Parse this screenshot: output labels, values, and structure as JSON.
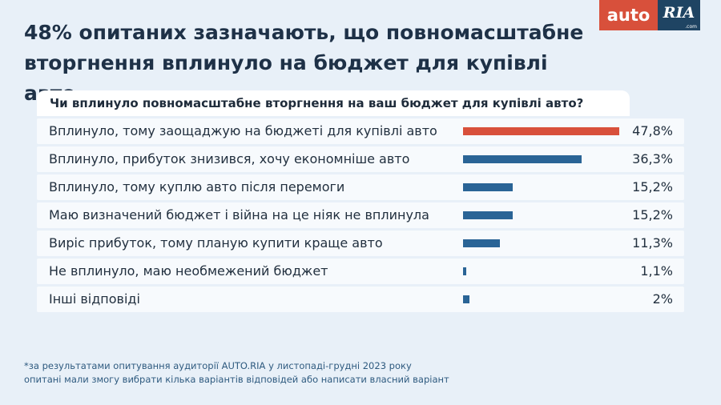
{
  "headline": "48% опитаних зазначають, що повномасштабне вторгнення вплинуло на бюджет для купівлі авто",
  "logo": {
    "part1": "auto",
    "part2": "RIA",
    "suffix": ".com"
  },
  "chart_data": {
    "type": "bar",
    "orientation": "horizontal",
    "title": "Чи вплинуло повномасштабне вторгнення на ваш бюджет для купівлі авто?",
    "max_value": 47.8,
    "highlight_color": "#d8503b",
    "bar_color": "#2a6496",
    "items": [
      {
        "label": "Вплинуло, тому заощаджую на бюджеті для купівлі авто",
        "value": 47.8,
        "display": "47,8%",
        "highlight": true
      },
      {
        "label": "Вплинуло, прибуток знизився, хочу економніше авто",
        "value": 36.3,
        "display": "36,3%",
        "highlight": false
      },
      {
        "label": "Вплинуло, тому куплю авто після перемоги",
        "value": 15.2,
        "display": "15,2%",
        "highlight": false
      },
      {
        "label": "Маю визначений бюджет і війна на це ніяк не вплинула",
        "value": 15.2,
        "display": "15,2%",
        "highlight": false
      },
      {
        "label": "Виріс прибуток, тому планую купити краще авто",
        "value": 11.3,
        "display": "11,3%",
        "highlight": false
      },
      {
        "label": "Не вплинуло, маю необмежений бюджет",
        "value": 1.1,
        "display": "1,1%",
        "highlight": false
      },
      {
        "label": "Інші відповіді",
        "value": 2,
        "display": "2%",
        "highlight": false
      }
    ]
  },
  "footnote": {
    "line1": "*за результатами опитування аудиторії AUTO.RIA у листопаді-грудні 2023 року",
    "line2": "опитані мали змогу вибрати кілька варіантів відповідей або написати власний варіант"
  }
}
